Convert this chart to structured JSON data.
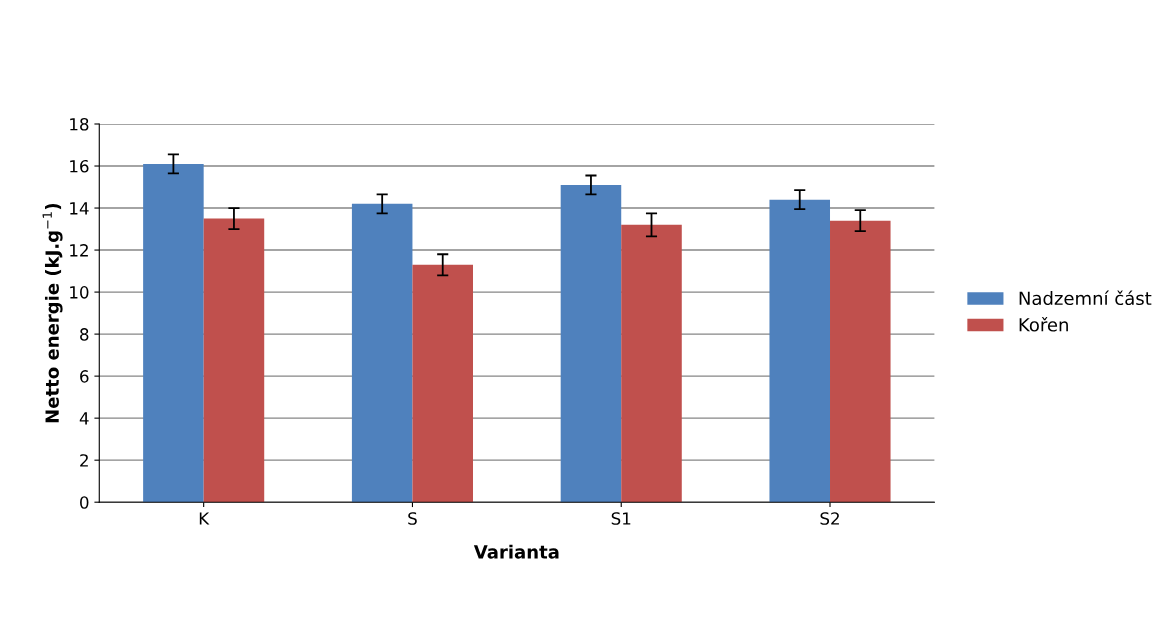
{
  "chart_data": {
    "type": "bar",
    "xlabel": "Varianta",
    "ylabel": "Netto energie (kJ.g$^{−1}$)",
    "categories": [
      "K",
      "S",
      "S1",
      "S2"
    ],
    "series": [
      {
        "name": "Nadzemní část",
        "color": "#4f81bd",
        "values": [
          16.1,
          14.2,
          15.1,
          14.4
        ],
        "errors": [
          0.45,
          0.45,
          0.45,
          0.45
        ]
      },
      {
        "name": "Kořen",
        "color": "#c0504d",
        "values": [
          13.5,
          11.3,
          13.2,
          13.4
        ],
        "errors": [
          0.5,
          0.5,
          0.55,
          0.5
        ]
      }
    ],
    "ylim": [
      0,
      18
    ],
    "yticks": [
      0,
      2,
      4,
      6,
      8,
      10,
      12,
      14,
      16,
      18
    ],
    "grid": "y",
    "legend": "right"
  }
}
